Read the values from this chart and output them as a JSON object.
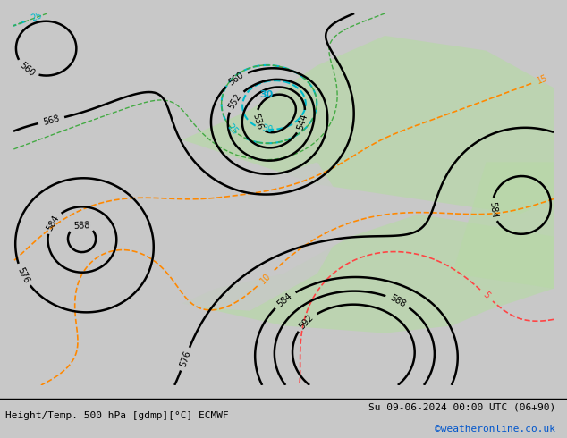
{
  "title_left": "Height/Temp. 500 hPa [gdmp][°C] ECMWF",
  "title_right": "Su 09-06-2024 00:00 UTC (06+90)",
  "credit": "©weatheronline.co.uk",
  "bg_color": "#d0d0d0",
  "land_color": "#c8c8c8",
  "green_land_color": "#b8d8b0",
  "figsize": [
    6.34,
    4.9
  ],
  "dpi": 100
}
